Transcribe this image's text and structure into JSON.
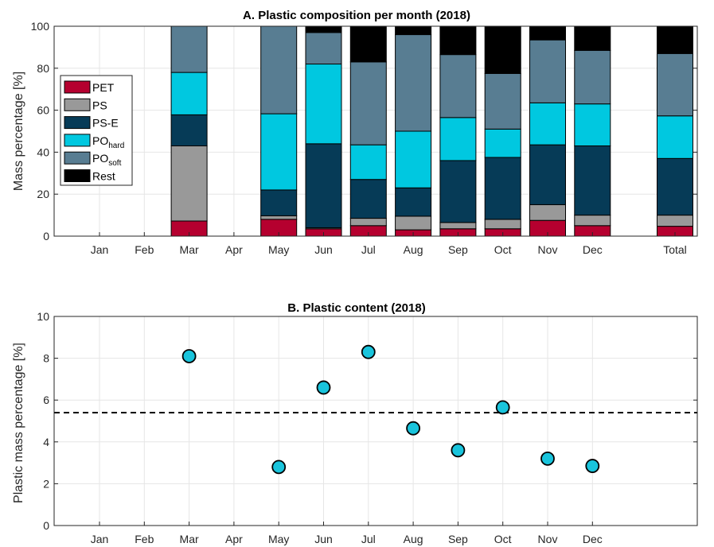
{
  "colors": {
    "PET": "#b5002f",
    "PS": "#999999",
    "PS-E": "#063b57",
    "PO_hard": "#00c8e0",
    "PO_soft": "#587d92",
    "Rest": "#000000",
    "scatter_fill": "#19c4dc",
    "grid": "#e6e6e6",
    "axis": "#262626"
  },
  "chart_data": [
    {
      "type": "bar",
      "stacked": true,
      "title": "A. Plastic composition per month (2018)",
      "xlabel": "",
      "ylabel": "Mass percentage [%]",
      "ylim": [
        0,
        100
      ],
      "yticks": [
        0,
        20,
        40,
        60,
        80,
        100
      ],
      "categories": [
        "Jan",
        "Feb",
        "Mar",
        "Apr",
        "May",
        "Jun",
        "Jul",
        "Aug",
        "Sep",
        "Oct",
        "Nov",
        "Dec",
        "Total"
      ],
      "grid": true,
      "legend_position": "left",
      "legend": [
        {
          "key": "PET",
          "base": "PET",
          "sub": ""
        },
        {
          "key": "PS",
          "base": "PS",
          "sub": ""
        },
        {
          "key": "PS-E",
          "base": "PS-E",
          "sub": ""
        },
        {
          "key": "PO_hard",
          "base": "PO",
          "sub": "hard"
        },
        {
          "key": "PO_soft",
          "base": "PO",
          "sub": "soft"
        },
        {
          "key": "Rest",
          "base": "Rest",
          "sub": ""
        }
      ],
      "series": [
        {
          "key": "PET",
          "values": [
            null,
            null,
            7.2,
            null,
            8.0,
            3.5,
            5.0,
            3.0,
            3.5,
            3.5,
            7.5,
            5.0,
            4.7
          ]
        },
        {
          "key": "PS",
          "values": [
            null,
            null,
            35.8,
            null,
            1.7,
            0.5,
            3.5,
            6.5,
            3.0,
            4.5,
            7.5,
            5.0,
            5.3
          ]
        },
        {
          "key": "PS-E",
          "values": [
            null,
            null,
            14.8,
            null,
            12.3,
            40.0,
            18.5,
            13.5,
            29.5,
            29.5,
            28.5,
            33.0,
            27.0
          ]
        },
        {
          "key": "PO_hard",
          "values": [
            null,
            null,
            20.2,
            null,
            36.3,
            38.0,
            16.5,
            27.0,
            20.5,
            13.5,
            20.0,
            20.0,
            20.3
          ]
        },
        {
          "key": "PO_soft",
          "values": [
            null,
            null,
            22.0,
            null,
            41.7,
            15.0,
            39.5,
            46.0,
            30.0,
            26.5,
            30.0,
            25.5,
            29.7
          ]
        },
        {
          "key": "Rest",
          "values": [
            null,
            null,
            0.0,
            null,
            0.0,
            3.0,
            17.0,
            4.0,
            13.5,
            22.5,
            6.5,
            11.5,
            13.0
          ]
        }
      ]
    },
    {
      "type": "scatter",
      "title": "B. Plastic content (2018)",
      "xlabel": "",
      "ylabel": "Plastic mass percentage [%]",
      "ylim": [
        0,
        10
      ],
      "yticks": [
        0,
        2,
        4,
        6,
        8,
        10
      ],
      "categories": [
        "Jan",
        "Feb",
        "Mar",
        "Apr",
        "May",
        "Jun",
        "Jul",
        "Aug",
        "Sep",
        "Oct",
        "Nov",
        "Dec"
      ],
      "grid": true,
      "values": [
        null,
        null,
        8.1,
        null,
        2.8,
        6.6,
        8.3,
        4.65,
        3.6,
        5.65,
        3.2,
        2.85
      ],
      "mean_line": 5.4
    }
  ]
}
